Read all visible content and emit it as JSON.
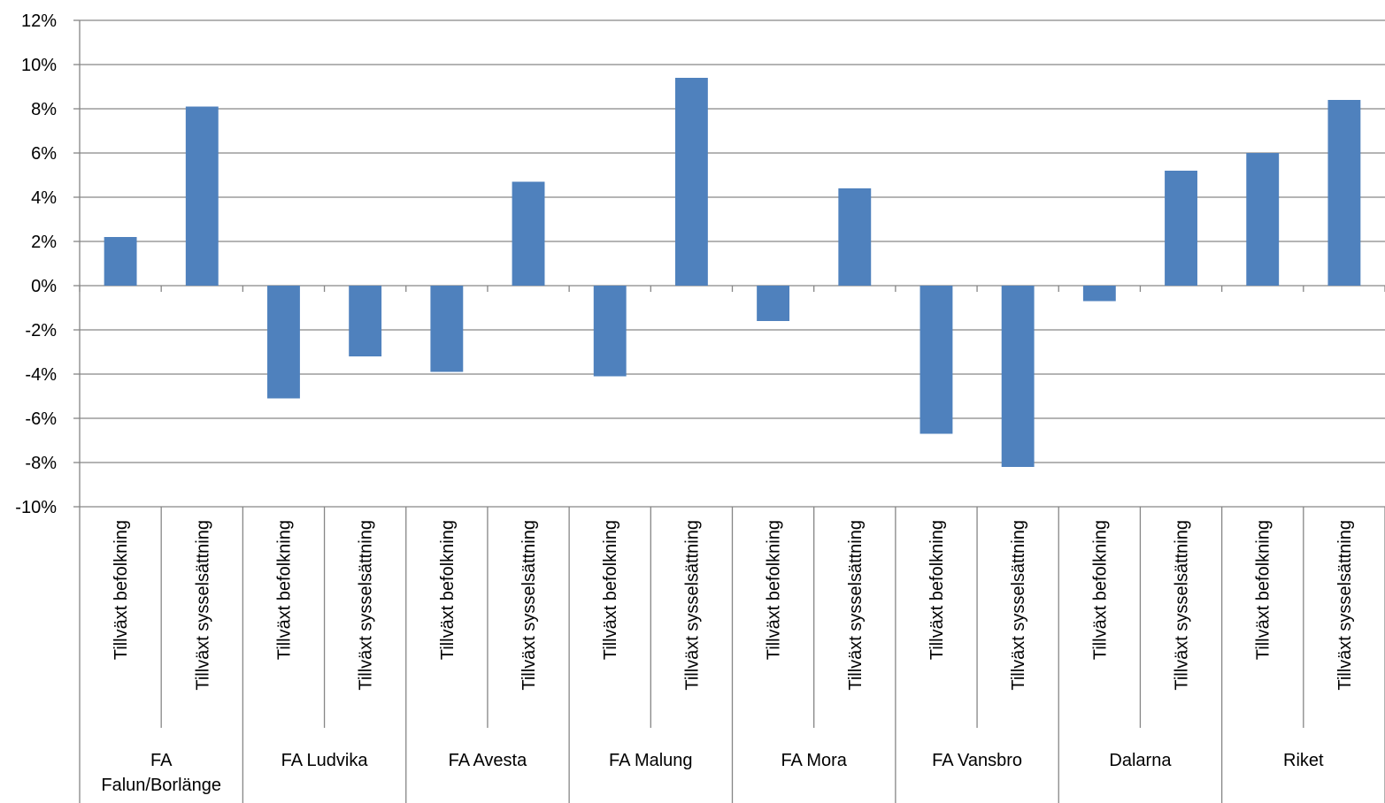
{
  "chart_data": {
    "type": "bar",
    "title": "",
    "xlabel": "",
    "ylabel": "",
    "ylim": [
      -10,
      12
    ],
    "y_ticks": [
      12,
      10,
      8,
      6,
      4,
      2,
      0,
      -2,
      -4,
      -6,
      -8,
      -10
    ],
    "y_tick_labels": [
      "12%",
      "10%",
      "8%",
      "6%",
      "4%",
      "2%",
      "0%",
      "-2%",
      "-4%",
      "-6%",
      "-8%",
      "-10%"
    ],
    "grid": true,
    "legend": "none",
    "bar_color": "#4F81BD",
    "categories": [
      {
        "group": "FA Falun/Borlänge",
        "label": "Tillväxt befolkning",
        "value": 2.2
      },
      {
        "group": "FA Falun/Borlänge",
        "label": "Tillväxt sysselsättning",
        "value": 8.1
      },
      {
        "group": "FA Ludvika",
        "label": "Tillväxt befolkning",
        "value": -5.1
      },
      {
        "group": "FA Ludvika",
        "label": "Tillväxt sysselsättning",
        "value": -3.2
      },
      {
        "group": "FA Avesta",
        "label": "Tillväxt befolkning",
        "value": -3.9
      },
      {
        "group": "FA Avesta",
        "label": "Tillväxt sysselsättning",
        "value": 4.7
      },
      {
        "group": "FA Malung",
        "label": "Tillväxt befolkning",
        "value": -4.1
      },
      {
        "group": "FA Malung",
        "label": "Tillväxt sysselsättning",
        "value": 9.4
      },
      {
        "group": "FA Mora",
        "label": "Tillväxt befolkning",
        "value": -1.6
      },
      {
        "group": "FA Mora",
        "label": "Tillväxt sysselsättning",
        "value": 4.4
      },
      {
        "group": "FA Vansbro",
        "label": "Tillväxt befolkning",
        "value": -6.7
      },
      {
        "group": "FA Vansbro",
        "label": "Tillväxt sysselsättning",
        "value": -8.2
      },
      {
        "group": "Dalarna",
        "label": "Tillväxt befolkning",
        "value": -0.7
      },
      {
        "group": "Dalarna",
        "label": "Tillväxt sysselsättning",
        "value": 5.2
      },
      {
        "group": "Riket",
        "label": "Tillväxt befolkning",
        "value": 6.0
      },
      {
        "group": "Riket",
        "label": "Tillväxt sysselsättning",
        "value": 8.4
      }
    ],
    "groups": [
      {
        "name_lines": [
          "FA",
          "Falun/Borlänge"
        ]
      },
      {
        "name_lines": [
          "FA Ludvika"
        ]
      },
      {
        "name_lines": [
          "FA Avesta"
        ]
      },
      {
        "name_lines": [
          "FA Malung"
        ]
      },
      {
        "name_lines": [
          "FA Mora"
        ]
      },
      {
        "name_lines": [
          "FA Vansbro"
        ]
      },
      {
        "name_lines": [
          "Dalarna"
        ]
      },
      {
        "name_lines": [
          "Riket"
        ]
      }
    ]
  }
}
